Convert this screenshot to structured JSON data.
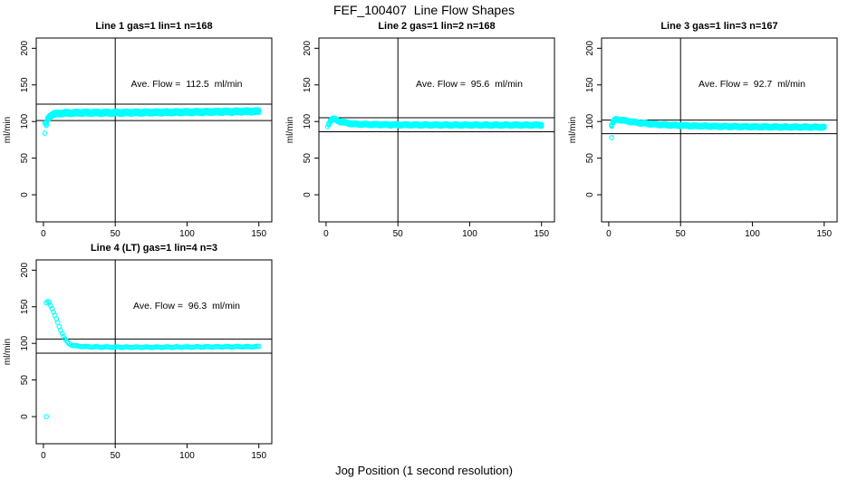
{
  "figure": {
    "title": "FEF_100407  Line Flow Shapes",
    "xlabel": "Jog Position (1 second resolution)",
    "background": "#ffffff"
  },
  "chart_data": {
    "type": "scatter",
    "title": "FEF_100407  Line Flow Shapes",
    "xlabel": "Jog Position (1 second resolution)",
    "ylabel": "ml/min",
    "xticks": [
      0,
      50,
      100,
      150
    ],
    "yticks": [
      0,
      50,
      100,
      150,
      200
    ],
    "xlim": [
      -5,
      159
    ],
    "ylim": [
      -37,
      214
    ],
    "point_color": "#00ffff",
    "line_color": "#000000",
    "vline_x": 50,
    "legend": "none",
    "grid": "off",
    "plots": [
      {
        "title": "Line 1 gas=1 lin=1 n=168",
        "annotation": "Ave. Flow =  112.5  ml/min",
        "avg_flow": 112.5,
        "n": 168,
        "hlines": [
          123.8,
          101.3
        ],
        "outliers": [
          [
            1,
            98
          ],
          [
            1,
            84
          ]
        ],
        "curve": [
          [
            2,
            96
          ],
          [
            3,
            103
          ],
          [
            4,
            106
          ],
          [
            5,
            108
          ],
          [
            7,
            110
          ],
          [
            10,
            111
          ],
          [
            15,
            111.5
          ],
          [
            25,
            112
          ],
          [
            50,
            112
          ],
          [
            80,
            112.5
          ],
          [
            110,
            113
          ],
          [
            130,
            113.5
          ],
          [
            150,
            114
          ]
        ],
        "band_offsets": [
          -1.8,
          0,
          1.8
        ]
      },
      {
        "title": "Line 2 gas=1 lin=2 n=168",
        "annotation": "Ave. Flow =  95.6  ml/min",
        "avg_flow": 95.6,
        "n": 168,
        "hlines": [
          105.2,
          86.0
        ],
        "outliers": [
          [
            1,
            93
          ]
        ],
        "curve": [
          [
            2,
            97
          ],
          [
            3,
            101
          ],
          [
            4,
            103
          ],
          [
            5,
            103.5
          ],
          [
            6,
            103
          ],
          [
            8,
            101
          ],
          [
            10,
            100
          ],
          [
            13,
            98.5
          ],
          [
            16,
            97.5
          ],
          [
            20,
            96.5
          ],
          [
            30,
            96
          ],
          [
            50,
            95.5
          ],
          [
            80,
            95.3
          ],
          [
            120,
            95.2
          ],
          [
            150,
            95.2
          ]
        ],
        "band_offsets": [
          -1.2,
          0,
          1.2
        ]
      },
      {
        "title": "Line 3 gas=1 lin=3 n=167",
        "annotation": "Ave. Flow =  92.7  ml/min",
        "avg_flow": 92.7,
        "n": 167,
        "hlines": [
          102.0,
          83.4
        ],
        "outliers": [
          [
            2,
            78
          ]
        ],
        "curve": [
          [
            2,
            95
          ],
          [
            3,
            99
          ],
          [
            4,
            101.5
          ],
          [
            5,
            102.5
          ],
          [
            7,
            102.5
          ],
          [
            10,
            101.5
          ],
          [
            15,
            100
          ],
          [
            20,
            98.5
          ],
          [
            30,
            96.5
          ],
          [
            40,
            95.3
          ],
          [
            60,
            94
          ],
          [
            80,
            93.3
          ],
          [
            100,
            92.8
          ],
          [
            120,
            92.5
          ],
          [
            150,
            92.3
          ]
        ],
        "band_offsets": [
          -1.2,
          0,
          1.2
        ]
      },
      {
        "title": "Line 4 (LT) gas=1 lin=4 n=3",
        "annotation": "Ave. Flow =  96.3  ml/min",
        "avg_flow": 96.3,
        "n": 3,
        "hlines": [
          105.9,
          86.7
        ],
        "outliers": [
          [
            2,
            0
          ]
        ],
        "curve": [
          [
            2,
            155
          ],
          [
            3,
            157
          ],
          [
            4,
            156
          ],
          [
            5,
            152
          ],
          [
            6,
            148
          ],
          [
            7,
            143
          ],
          [
            8,
            138
          ],
          [
            9,
            133
          ],
          [
            10,
            128
          ],
          [
            11,
            123
          ],
          [
            12,
            118
          ],
          [
            13,
            114
          ],
          [
            14,
            110
          ],
          [
            15,
            106
          ],
          [
            16,
            103
          ],
          [
            17,
            101
          ],
          [
            18,
            99.5
          ],
          [
            20,
            97.5
          ],
          [
            22,
            96.5
          ],
          [
            25,
            96
          ],
          [
            30,
            95.5
          ],
          [
            40,
            95
          ],
          [
            60,
            94.8
          ],
          [
            80,
            94.8
          ],
          [
            100,
            95
          ],
          [
            120,
            95.3
          ],
          [
            150,
            95.5
          ]
        ],
        "band_offsets": [
          0
        ]
      }
    ]
  }
}
